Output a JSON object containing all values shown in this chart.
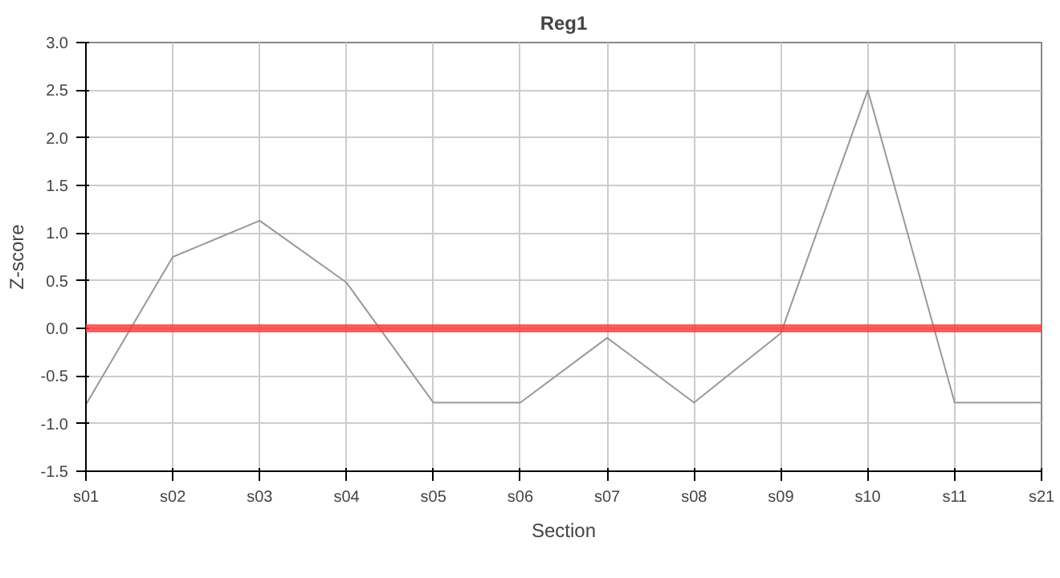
{
  "chart_data": {
    "type": "line",
    "title": "Reg1",
    "xlabel": "Section",
    "ylabel": "Z-score",
    "categories": [
      "s01",
      "s02",
      "s03",
      "s04",
      "s05",
      "s06",
      "s07",
      "s08",
      "s09",
      "s10",
      "s11",
      "s21"
    ],
    "series": [
      {
        "color": "#999999",
        "values": [
          -0.8,
          0.75,
          1.13,
          0.48,
          -0.78,
          -0.78,
          -0.1,
          -0.78,
          -0.05,
          2.5,
          -0.78,
          -0.78
        ]
      }
    ],
    "ylim": [
      -1.5,
      3.0
    ],
    "yticks": [
      {
        "value": -1.5,
        "label": "-1.5"
      },
      {
        "value": -1,
        "label": "-1.0"
      },
      {
        "value": -0.5,
        "label": "-0.5"
      },
      {
        "value": 0,
        "label": "0.0"
      },
      {
        "value": 0.5,
        "label": "0.5"
      },
      {
        "value": 1,
        "label": "1.0"
      },
      {
        "value": 1.5,
        "label": "1.5"
      },
      {
        "value": 2,
        "label": "2.0"
      },
      {
        "value": 2.5,
        "label": "2.5"
      },
      {
        "value": 3,
        "label": "3.0"
      }
    ],
    "ref_lines": [
      {
        "axis": "y",
        "value": 0,
        "color": "#ff3333"
      }
    ],
    "grid": true,
    "marker": "none",
    "line_style": "solid"
  }
}
